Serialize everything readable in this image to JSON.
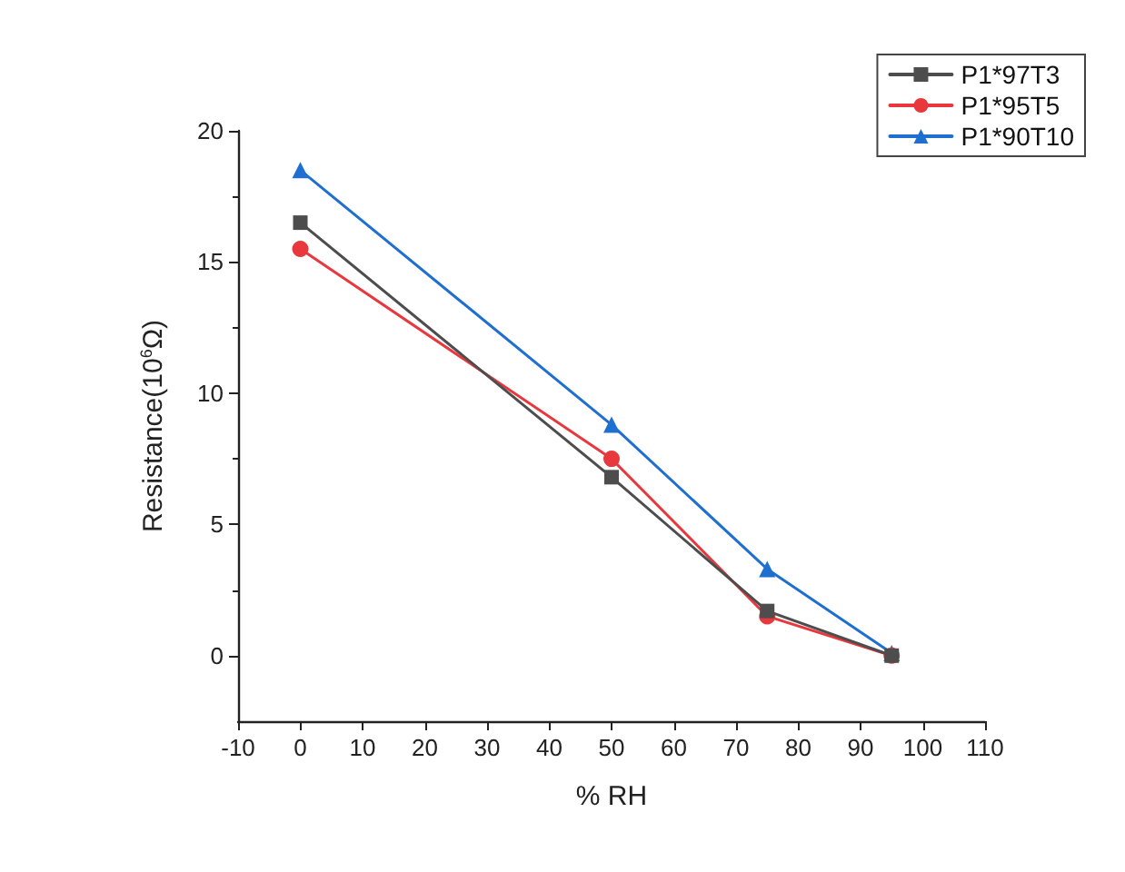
{
  "chart_data": {
    "type": "line",
    "xlabel": "% RH",
    "ylabel": "Resistance(10$^{6}$Ω)",
    "x": [
      0,
      50,
      75,
      95
    ],
    "series": [
      {
        "name": "P1*97T3",
        "color": "#4d4d4d",
        "marker": "square",
        "values": [
          16.5,
          6.8,
          1.7,
          0
        ]
      },
      {
        "name": "P1*95T5",
        "color": "#e8383d",
        "marker": "circle",
        "values": [
          15.5,
          7.5,
          1.5,
          0
        ]
      },
      {
        "name": "P1*90T10",
        "color": "#1f6fd1",
        "marker": "triangle",
        "values": [
          18.5,
          8.8,
          3.3,
          0.1
        ]
      }
    ],
    "xlim": [
      -10,
      110
    ],
    "xticks": [
      -10,
      0,
      10,
      20,
      30,
      40,
      50,
      60,
      70,
      80,
      90,
      100,
      110
    ],
    "ylim": [
      -2.5,
      20
    ],
    "yticks": [
      0,
      5,
      10,
      15,
      20
    ],
    "grid": false,
    "legend": "top right",
    "line_style": "solid"
  }
}
